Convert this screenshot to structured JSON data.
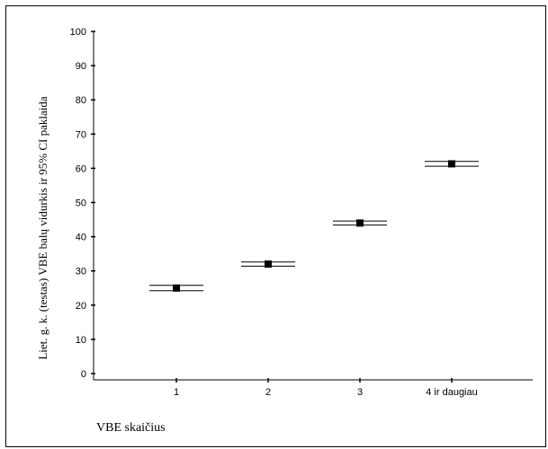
{
  "chart_data": {
    "type": "scatter",
    "title": "",
    "xlabel": "VBE skaičius",
    "ylabel": "Liet. g. k. (testas) VBE balų vidurkis ir 95% CI paklaida",
    "categories": [
      "1",
      "2",
      "3",
      "4 ir daugiau"
    ],
    "yticks": [
      "0",
      "10",
      "20",
      "30",
      "40",
      "50",
      "60",
      "70",
      "80",
      "90",
      "100"
    ],
    "ylim": [
      0,
      100
    ],
    "grid": false,
    "legend": "none",
    "series": [
      {
        "values": [
          25,
          32,
          44,
          61.3
        ],
        "ci_lower": [
          24.2,
          31.4,
          43.4,
          60.6
        ],
        "ci_upper": [
          25.8,
          32.6,
          44.6,
          62.0
        ]
      }
    ],
    "colors": {
      "marker": "#000000",
      "axis": "#000000"
    }
  }
}
